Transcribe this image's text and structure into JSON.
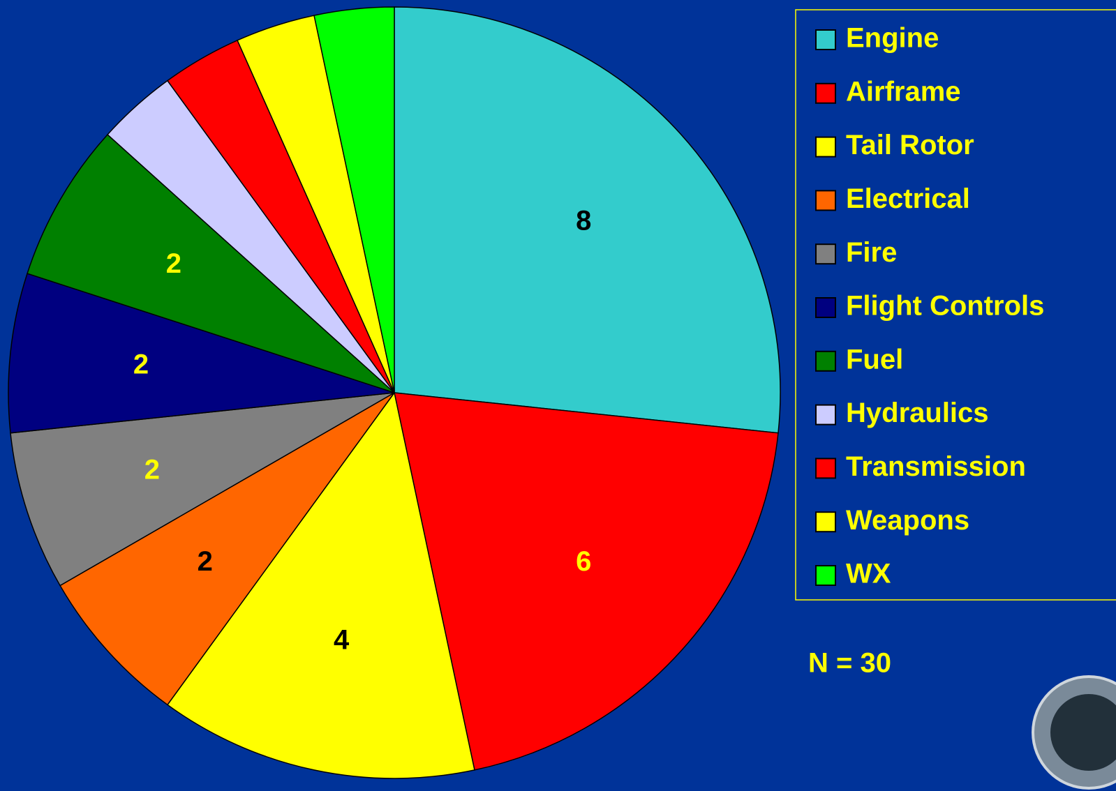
{
  "chart_data": {
    "type": "pie",
    "categories": [
      "Engine",
      "Airframe",
      "Tail Rotor",
      "Electrical",
      "Fire",
      "Flight Controls",
      "Fuel",
      "Hydraulics",
      "Transmission",
      "Weapons",
      "WX"
    ],
    "values": [
      8,
      6,
      4,
      2,
      2,
      2,
      2,
      1,
      1,
      1,
      1
    ],
    "value_labels": [
      "8",
      "6",
      "4",
      "2",
      "2",
      "2",
      "2",
      null,
      null,
      null,
      null
    ],
    "colors": [
      "#33cccc",
      "#ff0000",
      "#ffff00",
      "#ff6600",
      "#808080",
      "#000080",
      "#008000",
      "#ccccff",
      "#ff0000",
      "#ffff00",
      "#00ff00"
    ],
    "annotation": "N = 30",
    "legend": "right"
  }
}
